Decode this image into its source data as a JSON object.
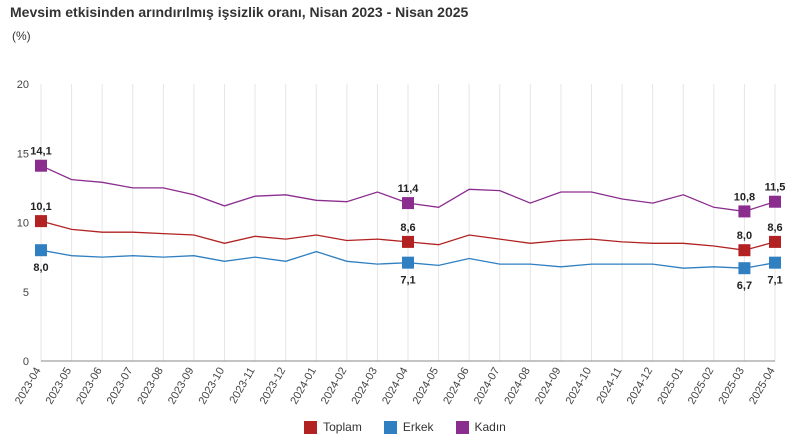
{
  "chart_data": {
    "type": "line",
    "title": "Mevsim etkisinden arındırılmış işsizlik oranı, Nisan 2023 - Nisan 2025",
    "unit": "(%)",
    "ylim": [
      0,
      20
    ],
    "yticks": [
      0,
      5,
      10,
      15,
      20
    ],
    "grid": "vertical",
    "legend_position": "bottom-center",
    "x": [
      "2023-04",
      "2023-05",
      "2023-06",
      "2023-07",
      "2023-08",
      "2023-09",
      "2023-10",
      "2023-11",
      "2023-12",
      "2024-01",
      "2024-02",
      "2024-03",
      "2024-04",
      "2024-05",
      "2024-06",
      "2024-07",
      "2024-08",
      "2024-09",
      "2024-10",
      "2024-11",
      "2024-12",
      "2025-01",
      "2025-02",
      "2025-03",
      "2025-04"
    ],
    "series": [
      {
        "name": "Toplam",
        "color": "#b22222",
        "values": [
          10.1,
          9.5,
          9.3,
          9.3,
          9.2,
          9.1,
          8.5,
          9.0,
          8.8,
          9.1,
          8.7,
          8.8,
          8.6,
          8.4,
          9.1,
          8.8,
          8.5,
          8.7,
          8.8,
          8.6,
          8.5,
          8.5,
          8.3,
          8.0,
          8.6
        ],
        "labels": [
          {
            "index": 0,
            "text": "10,1",
            "pos": "above"
          },
          {
            "index": 12,
            "text": "8,6",
            "pos": "above"
          },
          {
            "index": 23,
            "text": "8,0",
            "pos": "above"
          },
          {
            "index": 24,
            "text": "8,6",
            "pos": "above"
          }
        ]
      },
      {
        "name": "Erkek",
        "color": "#2f7fc1",
        "values": [
          8.0,
          7.6,
          7.5,
          7.6,
          7.5,
          7.6,
          7.2,
          7.5,
          7.2,
          7.9,
          7.2,
          7.0,
          7.1,
          6.9,
          7.4,
          7.0,
          7.0,
          6.8,
          7.0,
          7.0,
          7.0,
          6.7,
          6.8,
          6.7,
          7.1
        ],
        "labels": [
          {
            "index": 0,
            "text": "8,0",
            "pos": "below"
          },
          {
            "index": 12,
            "text": "7,1",
            "pos": "below"
          },
          {
            "index": 23,
            "text": "6,7",
            "pos": "below"
          },
          {
            "index": 24,
            "text": "7,1",
            "pos": "below"
          }
        ]
      },
      {
        "name": "Kadın",
        "color": "#8b2c8f",
        "values": [
          14.1,
          13.1,
          12.9,
          12.5,
          12.5,
          12.0,
          11.2,
          11.9,
          12.0,
          11.6,
          11.5,
          12.2,
          11.4,
          11.1,
          12.4,
          12.3,
          11.4,
          12.2,
          12.2,
          11.7,
          11.4,
          12.0,
          11.1,
          10.8,
          11.5
        ],
        "labels": [
          {
            "index": 0,
            "text": "14,1",
            "pos": "above"
          },
          {
            "index": 12,
            "text": "11,4",
            "pos": "above"
          },
          {
            "index": 23,
            "text": "10,8",
            "pos": "above"
          },
          {
            "index": 24,
            "text": "11,5",
            "pos": "above"
          }
        ]
      }
    ],
    "markers_at": [
      0,
      12,
      23,
      24
    ]
  }
}
